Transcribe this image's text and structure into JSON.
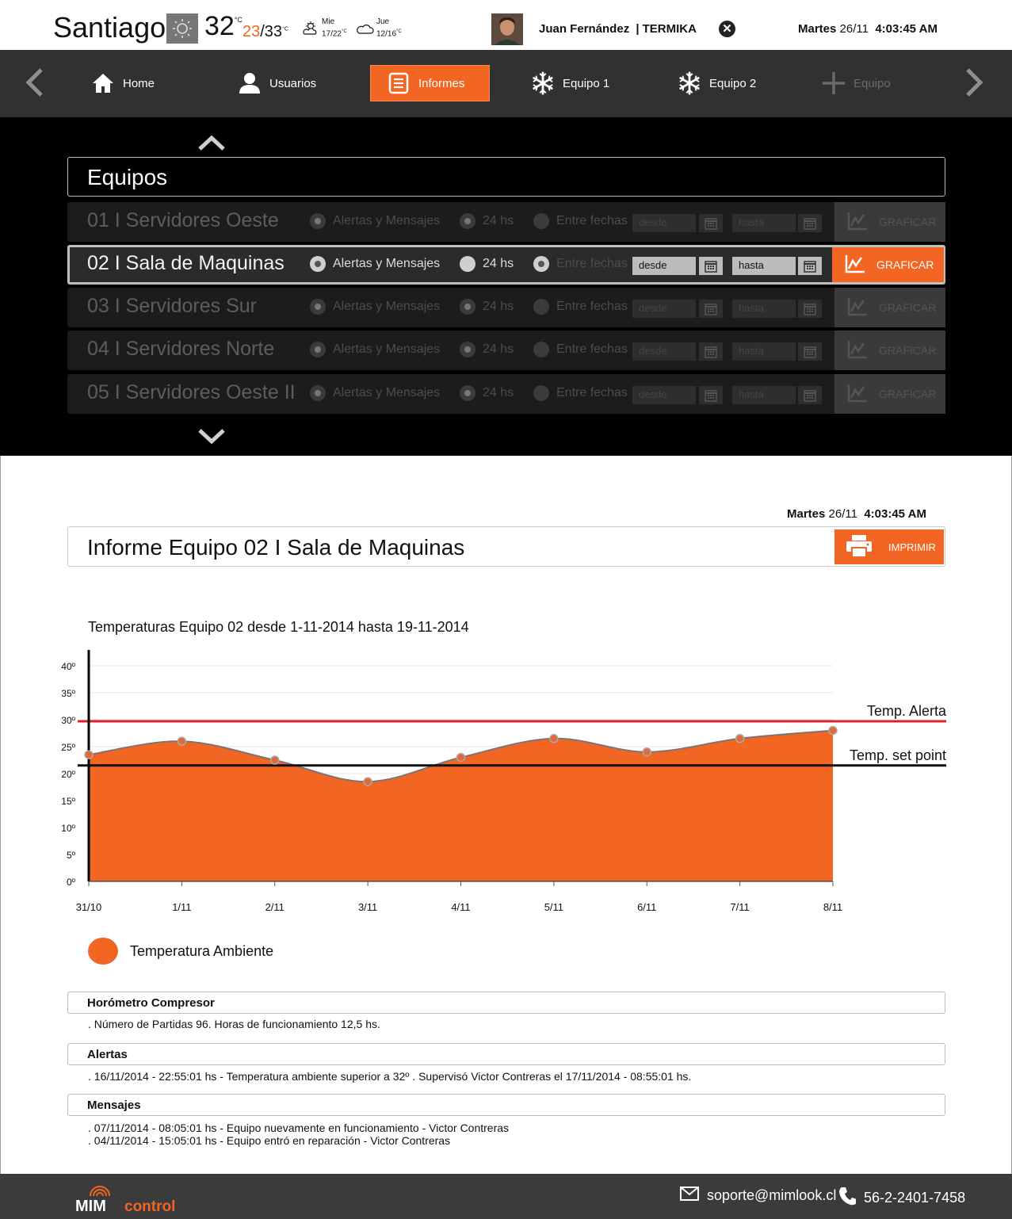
{
  "header": {
    "city": "Santiago",
    "temp_now": "32",
    "temp_unit": "°C",
    "temp_low": "23",
    "temp_high": "/33",
    "forecast": [
      {
        "day": "Mie",
        "range": "17/22",
        "unit": "°C",
        "icon": "partly-sunny-icon"
      },
      {
        "day": "Jue",
        "range": "12/16",
        "unit": "°C",
        "icon": "cloud-icon"
      }
    ],
    "user_name": "Juan Fernández",
    "separator": "|",
    "company": "TERMIKA",
    "date_day": "Martes",
    "date": "26/11",
    "time": "4:03:45 AM"
  },
  "nav": {
    "items": [
      {
        "label": "Home",
        "icon": "home-icon"
      },
      {
        "label": "Usuarios",
        "icon": "user-icon"
      },
      {
        "label": "Informes",
        "icon": "report-icon"
      },
      {
        "label": "Equipo 1",
        "icon": "snowflake-icon"
      },
      {
        "label": "Equipo 2",
        "icon": "snowflake-icon"
      },
      {
        "label": "Equipo",
        "icon": "plus-icon"
      }
    ]
  },
  "selector": {
    "title": "Equipos",
    "rows": [
      {
        "name": "01  I  Servidores Oeste"
      },
      {
        "name": "02  I  Sala de Maquinas"
      },
      {
        "name": "03  I  Servidores Sur"
      },
      {
        "name": "04  I  Servidores Norte"
      },
      {
        "name": "05  I  Servidores Oeste II"
      }
    ],
    "opt_alerts": "Alertas y Mensajes",
    "opt_24": "24 hs",
    "opt_range": "Entre fechas",
    "from_placeholder": "desde",
    "to_placeholder": "hasta",
    "graph_label": "GRAFICAR"
  },
  "report": {
    "date_day": "Martes",
    "date": "26/11",
    "time": "4:03:45 AM",
    "title": "Informe Equipo 02  I  Sala de Maquinas",
    "print_label": "IMPRIMIR",
    "chart_title": "Temperaturas Equipo 02 desde 1-11-2014 hasta 19-11-2014",
    "sections": {
      "horometro_title": "Horómetro Compresor",
      "horometro_text": ". Número de Partidas 96. Horas de funcionamiento 12,5 hs.",
      "alertas_title": "Alertas",
      "alertas_text": ". 16/11/2014 - 22:55:01 hs - Temperatura ambiente superior a 32º .  Supervisó Victor Contreras el 17/11/2014 - 08:55:01 hs.",
      "mensajes_title": "Mensajes",
      "mensajes_1": ". 07/11/2014 - 08:05:01 hs - Equipo nuevamente en funcionamiento -  Victor Contreras",
      "mensajes_2": ". 04/11/2014 - 15:05:01 hs - Equipo entró en reparación -  Victor Contreras"
    }
  },
  "chart_data": {
    "type": "area",
    "title": "Temperaturas Equipo 02 desde 1-11-2014 hasta 19-11-2014",
    "categories": [
      "31/10",
      "1/11",
      "2/11",
      "3/11",
      "4/11",
      "5/11",
      "6/11",
      "7/11",
      "8/11"
    ],
    "y_ticks": [
      "0º",
      "5º",
      "10º",
      "15º",
      "20º",
      "25º",
      "30º",
      "35º",
      "40º"
    ],
    "ylim": [
      0,
      40
    ],
    "grid": true,
    "series": [
      {
        "name": "Temperatura Ambiente",
        "color": "#f26522",
        "values": [
          23.5,
          26,
          22.5,
          18.5,
          23,
          26.5,
          24,
          26.5,
          28
        ]
      }
    ],
    "reference_lines": [
      {
        "label": "Temp. Alerta",
        "value": 29.7,
        "color": "#e0202a"
      },
      {
        "label": "Temp. set point",
        "value": 21.5,
        "color": "#111111"
      }
    ],
    "legend_position": "bottom-left"
  },
  "footer": {
    "logo_left": "MIM",
    "logo_right": "control",
    "email": "soporte@mimlook.cl",
    "phone": "56-2-2401-7458"
  },
  "colors": {
    "accent": "#f26522",
    "nav_bg": "#313131",
    "dark_bg": "#000000",
    "footer_bg": "#3b3b3b"
  }
}
